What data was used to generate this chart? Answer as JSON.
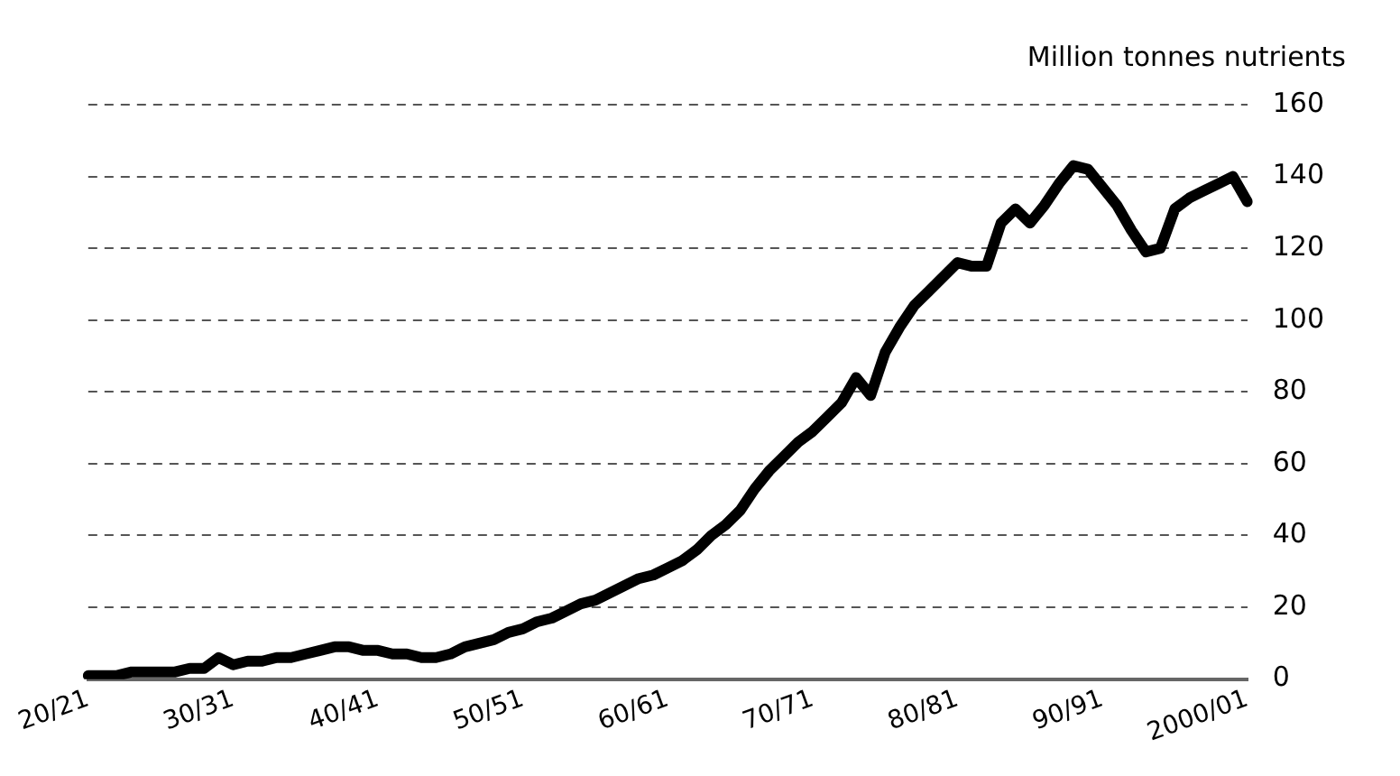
{
  "chart_data": {
    "type": "line",
    "ylabel": "Million tonnes nutrients",
    "categories": [
      "20/21",
      null,
      null,
      null,
      null,
      null,
      null,
      null,
      null,
      null,
      "30/31",
      null,
      null,
      null,
      null,
      null,
      null,
      null,
      null,
      null,
      "40/41",
      null,
      null,
      null,
      null,
      null,
      null,
      null,
      null,
      null,
      "50/51",
      null,
      null,
      null,
      null,
      null,
      null,
      null,
      null,
      null,
      "60/61",
      null,
      null,
      null,
      null,
      null,
      null,
      null,
      null,
      null,
      "70/71",
      null,
      null,
      null,
      null,
      null,
      null,
      null,
      null,
      null,
      "80/81",
      null,
      null,
      null,
      null,
      null,
      null,
      null,
      null,
      null,
      "90/91",
      null,
      null,
      null,
      null,
      null,
      null,
      null,
      null,
      null,
      "2000/01"
    ],
    "series": [
      {
        "color": "#000000",
        "values": [
          1,
          1,
          1,
          2,
          2,
          2,
          2,
          3,
          3,
          6,
          4,
          5,
          5,
          6,
          6,
          7,
          8,
          9,
          9,
          8,
          8,
          7,
          7,
          6,
          6,
          7,
          9,
          10,
          11,
          13,
          14,
          16,
          17,
          19,
          21,
          22,
          24,
          26,
          28,
          29,
          31,
          33,
          36,
          40,
          43,
          47,
          53,
          58,
          62,
          66,
          69,
          73,
          77,
          84,
          79,
          91,
          98,
          104,
          108,
          112,
          116,
          115,
          115,
          127,
          131,
          127,
          132,
          138,
          143,
          142,
          137,
          132,
          125,
          119,
          120,
          131,
          134,
          136,
          138,
          140,
          133
        ]
      }
    ],
    "ylim": [
      0,
      160
    ],
    "yticks": [
      0,
      20,
      40,
      60,
      80,
      100,
      120,
      140,
      160
    ],
    "grid": "y",
    "legend": false,
    "marker": "none",
    "line_style": "solid"
  }
}
